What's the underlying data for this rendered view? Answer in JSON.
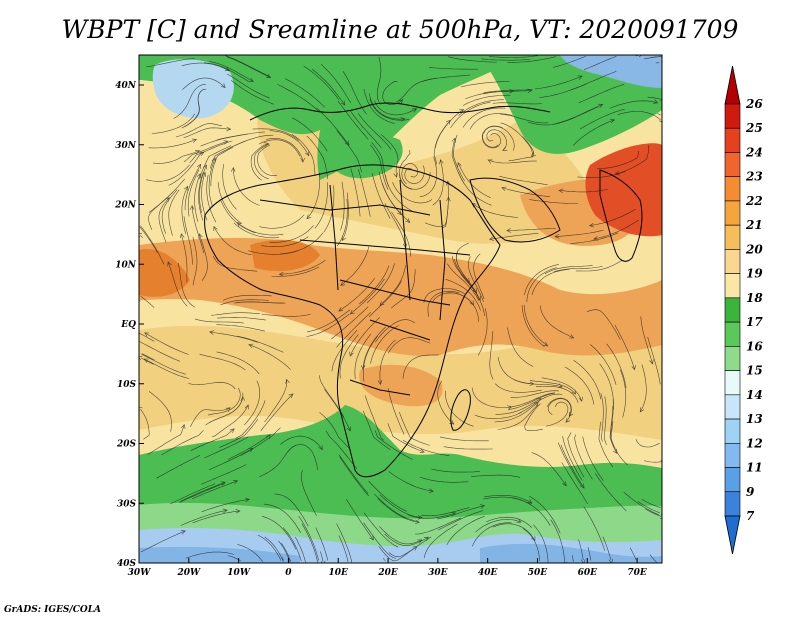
{
  "title": "WBPT [C] and Sreamline at 500hPa, VT: 2020091709",
  "credit": "GrADS: IGES/COLA",
  "map": {
    "lon_labels": [
      "30W",
      "20W",
      "10W",
      "0",
      "10E",
      "20E",
      "30E",
      "40E",
      "50E",
      "60E",
      "70E"
    ],
    "lat_labels": [
      "40N",
      "30N",
      "20N",
      "10N",
      "EQ",
      "10S",
      "20S",
      "30S",
      "40S"
    ],
    "colors": {
      "green_dark": "#3cb44b",
      "green_mid": "#5ac85a",
      "green_light": "#8ed88a",
      "yellow": "#f8e6a0",
      "tan": "#f1d080",
      "orange_light": "#f0b050",
      "orange": "#e8914a",
      "red_orange": "#e5552a",
      "blue_light": "#b4d2f0",
      "blue_mid": "#82b4e6",
      "blue_pale": "#d2eaf5"
    }
  },
  "colorbar": {
    "labels": [
      "26",
      "25",
      "24",
      "23",
      "22",
      "21",
      "20",
      "19",
      "18",
      "17",
      "16",
      "15",
      "14",
      "13",
      "12",
      "11",
      "9",
      "7"
    ],
    "colors": [
      "#b40000",
      "#d2190f",
      "#e6411e",
      "#f0642d",
      "#f58c32",
      "#f5a53c",
      "#f5be5a",
      "#fad791",
      "#fae6a5",
      "#3cb43c",
      "#5ac85a",
      "#8cdc8c",
      "#e6fafa",
      "#c8e6fa",
      "#a0d2f5",
      "#82b9f0",
      "#5aa0e6",
      "#3c82dc",
      "#1e6ed2"
    ]
  }
}
